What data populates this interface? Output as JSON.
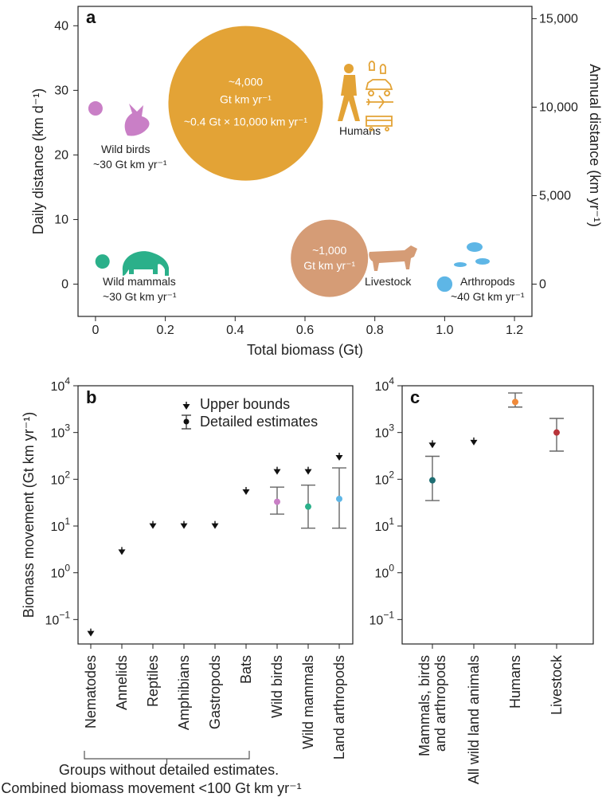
{
  "chart_data": [
    {
      "panel": "a",
      "type": "scatter",
      "xlabel": "Total biomass (Gt)",
      "ylabel": "Daily distance (km d⁻¹)",
      "y2label": "Annual distance (km yr⁻¹)",
      "xlim": [
        -0.05,
        1.25
      ],
      "ylim": [
        -5,
        43
      ],
      "xticks": [
        {
          "v": 0,
          "t": "0"
        },
        {
          "v": 0.2,
          "t": "0.2"
        },
        {
          "v": 0.4,
          "t": "0.4"
        },
        {
          "v": 0.6,
          "t": "0.6"
        },
        {
          "v": 0.8,
          "t": "0.8"
        },
        {
          "v": 1.0,
          "t": "1.0"
        },
        {
          "v": 1.2,
          "t": "1.2"
        }
      ],
      "yticks": [
        {
          "v": 0,
          "t": "0"
        },
        {
          "v": 10,
          "t": "10"
        },
        {
          "v": 20,
          "t": "20"
        },
        {
          "v": 30,
          "t": "30"
        },
        {
          "v": 40,
          "t": "40"
        }
      ],
      "y2ticks": [
        {
          "v": 0,
          "t": "0"
        },
        {
          "v": 5000,
          "t": "5,000"
        },
        {
          "v": 10000,
          "t": "10,000"
        },
        {
          "v": 15000,
          "t": "15,000"
        }
      ],
      "points": [
        {
          "name": "Wild birds",
          "x": 0.0,
          "y": 27.2,
          "movement": 30,
          "color": "#c97fc6",
          "label": "Wild birds",
          "value_label": "~30 Gt km yr⁻¹",
          "icon": "bird-icon"
        },
        {
          "name": "Humans",
          "x": 0.43,
          "y": 28,
          "movement": 4000,
          "color": "#e3a336",
          "label": "Humans",
          "value_label": "~4,000",
          "unit_label": "Gt km yr⁻¹",
          "detail_label": "~0.4 Gt × 10,000 km yr⁻¹",
          "icon": "human-icon"
        },
        {
          "name": "Wild mammals",
          "x": 0.02,
          "y": 3.5,
          "movement": 30,
          "color": "#2bb08a",
          "label": "Wild mammals",
          "value_label": "~30 Gt km yr⁻¹",
          "icon": "elephant-icon"
        },
        {
          "name": "Livestock",
          "x": 0.67,
          "y": 4,
          "movement": 1000,
          "color": "#d59c76",
          "label": "Livestock",
          "value_label": "~1,000",
          "unit_label": "Gt km yr⁻¹",
          "icon": "cow-icon"
        },
        {
          "name": "Arthropods",
          "x": 1.0,
          "y": 0,
          "movement": 40,
          "color": "#5eb6e6",
          "label": "Arthropods",
          "value_label": "~40 Gt km yr⁻¹",
          "icon": "insects-icon"
        }
      ],
      "transport_icons": [
        "footprints-icon",
        "car-icon",
        "plane-icon",
        "bus-icon"
      ]
    },
    {
      "panel": "b",
      "type": "scatter",
      "scale": "log",
      "ylabel": "Biomass movement (Gt km yr⁻¹)",
      "ylim": [
        0.03,
        10000
      ],
      "yticks": [
        {
          "v": 0.1,
          "base": "10",
          "exp": "−1"
        },
        {
          "v": 1,
          "base": "10",
          "exp": "0"
        },
        {
          "v": 10,
          "base": "10",
          "exp": "1"
        },
        {
          "v": 100,
          "base": "10",
          "exp": "2"
        },
        {
          "v": 1000,
          "base": "10",
          "exp": "3"
        },
        {
          "v": 10000,
          "base": "10",
          "exp": "4"
        }
      ],
      "legend": {
        "upper": "Upper bounds",
        "detailed": "Detailed estimates"
      },
      "categories": [
        "Nematodes",
        "Annelids",
        "Reptiles",
        "Amphibians",
        "Gastropods",
        "Bats",
        "Wild birds",
        "Wild mammals",
        "Land arthropods"
      ],
      "upper_bounds": [
        0.045,
        2.5,
        9,
        9,
        9,
        48,
        130,
        130,
        260
      ],
      "estimates": [
        null,
        null,
        null,
        null,
        null,
        null,
        {
          "v": 33,
          "low": 18,
          "high": 68,
          "color": "#c97fc6"
        },
        {
          "v": 26,
          "low": 9,
          "high": 75,
          "color": "#2bb08a"
        },
        {
          "v": 38,
          "low": 9,
          "high": 175,
          "color": "#5eb6e6"
        }
      ],
      "bracket_text": [
        "Groups without detailed estimates.",
        "Combined biomass movement <100 Gt km yr⁻¹"
      ]
    },
    {
      "panel": "c",
      "type": "scatter",
      "scale": "log",
      "ylim": [
        0.03,
        10000
      ],
      "yticks": [
        {
          "v": 0.1,
          "base": "10",
          "exp": "−1"
        },
        {
          "v": 1,
          "base": "10",
          "exp": "0"
        },
        {
          "v": 10,
          "base": "10",
          "exp": "1"
        },
        {
          "v": 100,
          "base": "10",
          "exp": "2"
        },
        {
          "v": 1000,
          "base": "10",
          "exp": "3"
        },
        {
          "v": 10000,
          "base": "10",
          "exp": "4"
        }
      ],
      "categories": [
        "Mammals, birds and arthropods",
        "All wild land animals",
        "Humans",
        "Livestock"
      ],
      "category_lines": [
        [
          "Mammals, birds",
          "and arthropods"
        ],
        [
          "All wild land animals"
        ],
        [
          "Humans"
        ],
        [
          "Livestock"
        ]
      ],
      "upper_bounds": [
        480,
        550,
        null,
        null
      ],
      "estimates": [
        {
          "v": 95,
          "low": 35,
          "high": 310,
          "color": "#1e6e73"
        },
        null,
        {
          "v": 4500,
          "low": 3500,
          "high": 7000,
          "color": "#f08a3a"
        },
        {
          "v": 1000,
          "low": 400,
          "high": 2000,
          "color": "#b8343a"
        }
      ]
    }
  ]
}
